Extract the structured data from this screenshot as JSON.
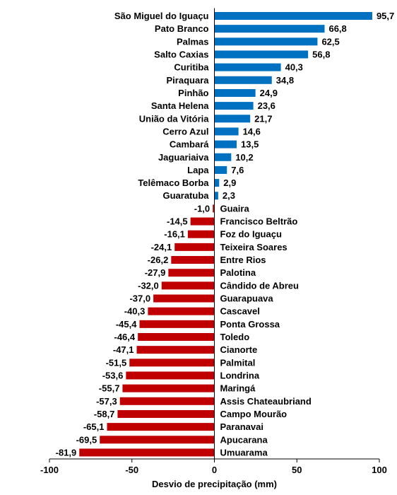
{
  "chart_data": {
    "type": "bar",
    "orientation": "horizontal",
    "title": "",
    "xlabel": "Desvio de precipitação (mm)",
    "ylabel": "",
    "xlim": [
      -100,
      100
    ],
    "xticks": [
      -100,
      -50,
      0,
      50,
      100
    ],
    "tick_labels": [
      "-100",
      "-50",
      "0",
      "50",
      "100"
    ],
    "grid": false,
    "legend": false,
    "colors": {
      "positive": "#0070C0",
      "negative": "#C00000"
    },
    "categories": [
      "São Miguel do Iguaçu",
      "Pato Branco",
      "Palmas",
      "Salto Caxias",
      "Curitiba",
      "Piraquara",
      "Pinhão",
      "Santa Helena",
      "União da Vitória",
      "Cerro Azul",
      "Cambará",
      "Jaguariaiva",
      "Lapa",
      "Telêmaco Borba",
      "Guaratuba",
      "Guaira",
      "Francisco Beltrão",
      "Foz do Iguaçu",
      "Teixeira Soares",
      "Entre Rios",
      "Palotina",
      "Cândido de Abreu",
      "Guarapuava",
      "Cascavel",
      "Ponta Grossa",
      "Toledo",
      "Cianorte",
      "Palmital",
      "Londrina",
      "Maringá",
      "Assis Chateaubriand",
      "Campo Mourão",
      "Paranavai",
      "Apucarana",
      "Umuarama"
    ],
    "values": [
      95.7,
      66.8,
      62.5,
      56.8,
      40.3,
      34.8,
      24.9,
      23.6,
      21.7,
      14.6,
      13.5,
      10.2,
      7.6,
      2.9,
      2.3,
      -1.0,
      -14.5,
      -16.1,
      -24.1,
      -26.2,
      -27.9,
      -32.0,
      -37.0,
      -40.3,
      -45.4,
      -46.4,
      -47.1,
      -51.5,
      -53.6,
      -55.7,
      -57.3,
      -58.7,
      -65.1,
      -69.5,
      -81.9
    ],
    "value_labels": [
      "95,7",
      "66,8",
      "62,5",
      "56,8",
      "40,3",
      "34,8",
      "24,9",
      "23,6",
      "21,7",
      "14,6",
      "13,5",
      "10,2",
      "7,6",
      "2,9",
      "2,3",
      "-1,0",
      "-14,5",
      "-16,1",
      "-24,1",
      "-26,2",
      "-27,9",
      "-32,0",
      "-37,0",
      "-40,3",
      "-45,4",
      "-46,4",
      "-47,1",
      "-51,5",
      "-53,6",
      "-55,7",
      "-57,3",
      "-58,7",
      "-65,1",
      "-69,5",
      "-81,9"
    ]
  }
}
